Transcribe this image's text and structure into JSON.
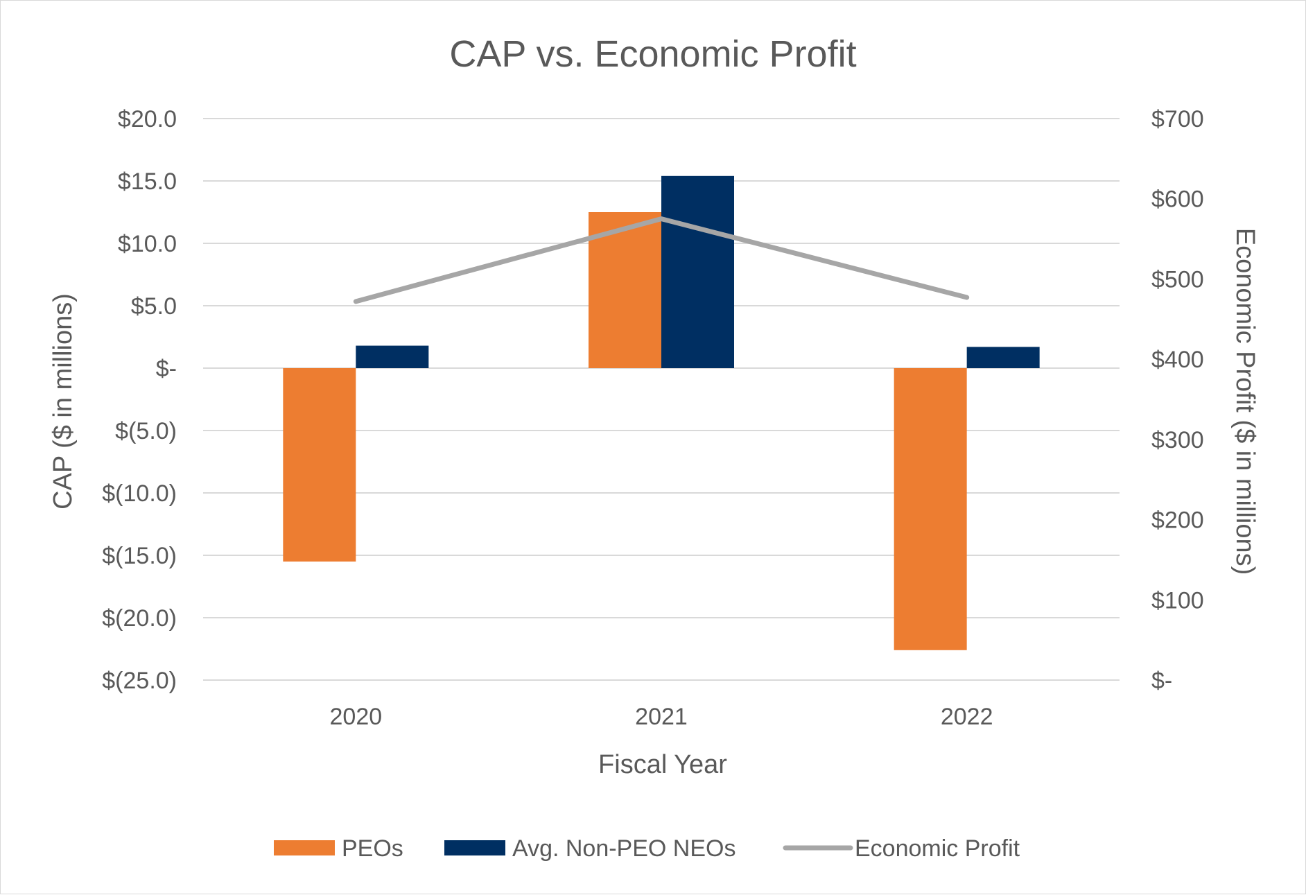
{
  "chart_data": {
    "type": "bar",
    "title": "CAP vs. Economic Profit",
    "xlabel": "Fiscal Year",
    "ylabel": "CAP ($ in millions)",
    "y2label": "Economic Profit ($ in millions)",
    "categories": [
      "2020",
      "2021",
      "2022"
    ],
    "ylim": [
      -25,
      20
    ],
    "y_ticks": [
      20,
      15,
      10,
      5,
      0,
      -5,
      -10,
      -15,
      -20,
      -25
    ],
    "y_tick_labels": [
      "$20.0",
      "$15.0",
      "$10.0",
      "$5.0",
      "$-",
      "$(5.0)",
      "$(10.0)",
      "$(15.0)",
      "$(20.0)",
      "$(25.0)"
    ],
    "y2lim": [
      0,
      700
    ],
    "y2_ticks": [
      700,
      600,
      500,
      400,
      300,
      200,
      100,
      0
    ],
    "y2_tick_labels": [
      "$700",
      "$600",
      "$500",
      "$400",
      "$300",
      "$200",
      "$100",
      "$-"
    ],
    "grid": true,
    "legend_position": "bottom",
    "series": [
      {
        "name": "PEOs",
        "type": "bar",
        "axis": "left",
        "color": "#ed7d31",
        "values": [
          -15.5,
          12.5,
          -22.6
        ]
      },
      {
        "name": "Avg. Non-PEO NEOs",
        "type": "bar",
        "axis": "left",
        "color": "#002f62",
        "values": [
          1.8,
          15.4,
          1.7
        ]
      },
      {
        "name": "Economic Profit",
        "type": "line",
        "axis": "right",
        "color": "#a6a6a6",
        "values": [
          472,
          575,
          477
        ]
      }
    ]
  }
}
